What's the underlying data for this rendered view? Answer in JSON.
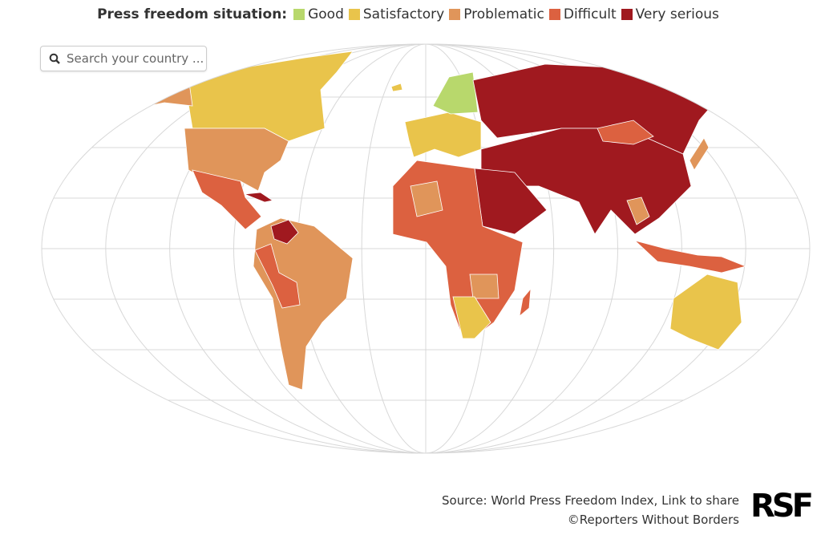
{
  "legend": {
    "title": "Press freedom situation:",
    "items": [
      {
        "label": "Good",
        "color": "#b8d86c"
      },
      {
        "label": "Satisfactory",
        "color": "#e9c44b"
      },
      {
        "label": "Problematic",
        "color": "#e0955a"
      },
      {
        "label": "Difficult",
        "color": "#dc6140"
      },
      {
        "label": "Very serious",
        "color": "#a0191f"
      }
    ]
  },
  "search": {
    "placeholder": "Search your country ..."
  },
  "source": {
    "text": "Source: World Press Freedom Index, Link to share",
    "credit": "©Reporters Without Borders"
  },
  "logo": "RSF"
}
